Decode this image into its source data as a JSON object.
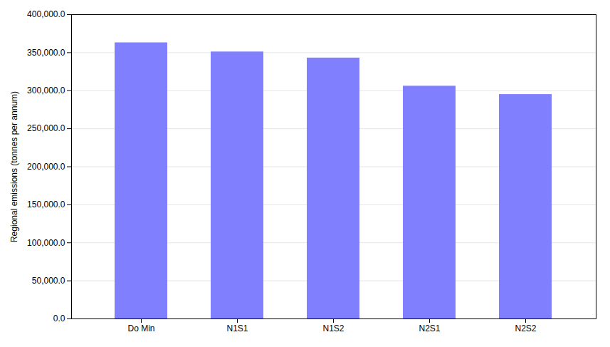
{
  "chart_data": {
    "type": "bar",
    "categories": [
      "Do Min",
      "N1S1",
      "N1S2",
      "N2S1",
      "N2S2"
    ],
    "values": [
      363000,
      351000,
      343000,
      306000,
      295000
    ],
    "color": "#8080ff",
    "ylabel": "Regional emissions (tonnes per annum)",
    "ylim": [
      0,
      400000
    ],
    "yticks": [
      {
        "value": 0,
        "label": "0.0"
      },
      {
        "value": 50000,
        "label": "50,000.0"
      },
      {
        "value": 100000,
        "label": "100,000.0"
      },
      {
        "value": 150000,
        "label": "150,000.0"
      },
      {
        "value": 200000,
        "label": "200,000.0"
      },
      {
        "value": 250000,
        "label": "250,000.0"
      },
      {
        "value": 300000,
        "label": "300,000.0"
      },
      {
        "value": 350000,
        "label": "350,000.0"
      },
      {
        "value": 400000,
        "label": "400,000.0"
      }
    ],
    "grid": true
  }
}
